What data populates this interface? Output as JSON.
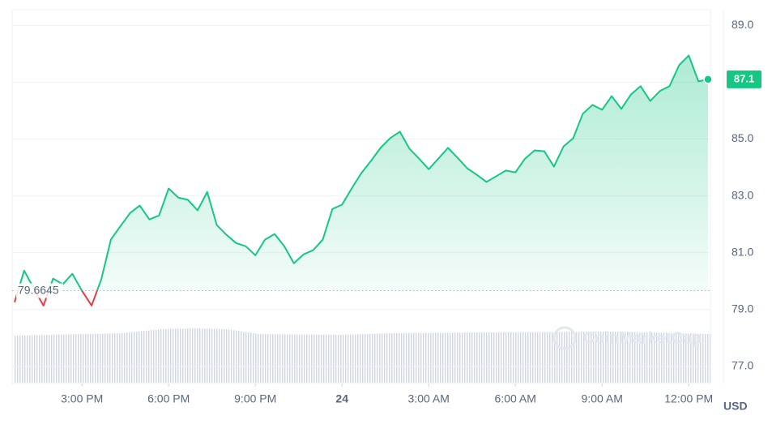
{
  "chart_data": {
    "type": "line",
    "watermark": "CoinMarketCap",
    "y_label": "USD",
    "baseline": 79.6645,
    "x": [
      760,
      780,
      800,
      820,
      840,
      860,
      880,
      900,
      920,
      940,
      960,
      980,
      1000,
      1020,
      1040,
      1060,
      1080,
      1100,
      1120,
      1140,
      1160,
      1180,
      1200,
      1220,
      1240,
      1260,
      1280,
      1300,
      1320,
      1340,
      1360,
      1380,
      1400,
      1420,
      1440,
      1460,
      1480,
      1500,
      1520,
      1540,
      1560,
      1580,
      1600,
      1620,
      1640,
      1660,
      1680,
      1700,
      1720,
      1740,
      1760,
      1780,
      1800,
      1820,
      1840,
      1860,
      1880,
      1900,
      1920,
      1940,
      1960,
      1980,
      2000,
      2020,
      2040,
      2060,
      2080,
      2100,
      2120,
      2140,
      2160,
      2180,
      2200
    ],
    "series": [
      {
        "color": "#16c784",
        "below_color": "#ea3943",
        "values": [
          79.26,
          80.37,
          79.74,
          79.14,
          80.09,
          79.89,
          80.26,
          79.66,
          79.14,
          80.06,
          81.46,
          81.94,
          82.4,
          82.66,
          82.17,
          82.31,
          83.26,
          82.94,
          82.86,
          82.49,
          83.14,
          81.97,
          81.63,
          81.34,
          81.23,
          80.91,
          81.46,
          81.66,
          81.23,
          80.63,
          80.94,
          81.09,
          81.46,
          82.54,
          82.69,
          83.26,
          83.8,
          84.23,
          84.69,
          85.03,
          85.26,
          84.66,
          84.31,
          83.94,
          84.31,
          84.69,
          84.34,
          83.97,
          83.74,
          83.49,
          83.69,
          83.89,
          83.83,
          84.31,
          84.6,
          84.57,
          84.03,
          84.74,
          85.03,
          85.89,
          86.2,
          86.03,
          86.51,
          86.06,
          86.57,
          86.86,
          86.34,
          86.69,
          86.86,
          87.6,
          87.94,
          87.03,
          87.1
        ]
      }
    ],
    "xlim": [
      755,
      2205
    ],
    "xticks": [
      {
        "value": 900,
        "label": "3:00 PM"
      },
      {
        "value": 1080,
        "label": "6:00 PM"
      },
      {
        "value": 1260,
        "label": "9:00 PM"
      },
      {
        "value": 1440,
        "label": "24"
      },
      {
        "value": 1620,
        "label": "3:00 AM"
      },
      {
        "value": 1800,
        "label": "6:00 AM"
      },
      {
        "value": 1980,
        "label": "9:00 AM"
      },
      {
        "value": 2160,
        "label": "12:00 PM"
      }
    ],
    "ylim": [
      76.4,
      89.55
    ],
    "yticks": [
      {
        "value": 77,
        "label": "77.0"
      },
      {
        "value": 79,
        "label": "79.0"
      },
      {
        "value": 81,
        "label": "81.0"
      },
      {
        "value": 83,
        "label": "83.0"
      },
      {
        "value": 85,
        "label": "85.0"
      },
      {
        "value": 87,
        "label": "87.0"
      },
      {
        "value": 89,
        "label": "89.0"
      }
    ],
    "grid": true
  }
}
